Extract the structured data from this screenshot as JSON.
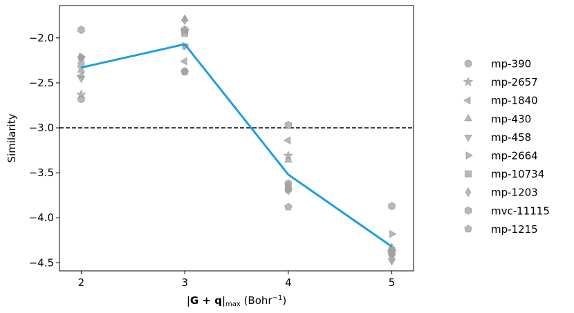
{
  "chart_data": {
    "type": "scatter",
    "xlabel": {
      "prefix": "|",
      "bold": "G + q",
      "suffix": "|",
      "sub": "max",
      "unit": " (Bohr",
      "sup": "−1",
      "close": ")"
    },
    "ylabel": "Similarity",
    "xlim": [
      1.79,
      5.21
    ],
    "ylim": [
      -4.59,
      -1.64
    ],
    "xticks": [
      2,
      3,
      4,
      5
    ],
    "xtick_labels": [
      "2",
      "3",
      "4",
      "5"
    ],
    "yticks": [
      -2.0,
      -2.5,
      -3.0,
      -3.5,
      -4.0,
      -4.5
    ],
    "ytick_labels": [
      "−2.0",
      "−2.5",
      "−3.0",
      "−3.5",
      "−4.0",
      "−4.5"
    ],
    "threshold": {
      "y": -3.0,
      "style": "dashed",
      "color": "#000000"
    },
    "marker_color": "#a0a0a0",
    "line_color": "#1a9fe0",
    "grid": false,
    "legend_position": "right-outside",
    "series": [
      {
        "name": "mp-390",
        "marker": "circle",
        "x": [
          2,
          3,
          4,
          5
        ],
        "y": [
          -2.68,
          -2.37,
          -3.62,
          -4.4
        ]
      },
      {
        "name": "mp-2657",
        "marker": "star",
        "x": [
          2,
          3,
          4,
          5
        ],
        "y": [
          -2.63,
          -1.92,
          -3.31,
          -4.38
        ]
      },
      {
        "name": "mp-1840",
        "marker": "triangle-left",
        "x": [
          2,
          3,
          4,
          5
        ],
        "y": [
          -2.42,
          -2.26,
          -3.14,
          -4.37
        ]
      },
      {
        "name": "mp-430",
        "marker": "triangle-up",
        "x": [
          2,
          3,
          4,
          5
        ],
        "y": [
          -2.36,
          -1.79,
          -3.36,
          -4.33
        ]
      },
      {
        "name": "mp-458",
        "marker": "triangle-down",
        "x": [
          2,
          3,
          4,
          5
        ],
        "y": [
          -2.45,
          -2.09,
          -3.7,
          -4.48
        ]
      },
      {
        "name": "mp-2664",
        "marker": "triangle-right",
        "x": [
          2,
          3,
          4,
          5
        ],
        "y": [
          -2.21,
          -2.09,
          -3.68,
          -4.18
        ]
      },
      {
        "name": "mp-10734",
        "marker": "square",
        "x": [
          2,
          3,
          4,
          5
        ],
        "y": [
          -2.3,
          -1.95,
          -3.68,
          -4.36
        ]
      },
      {
        "name": "mp-1203",
        "marker": "diamond",
        "x": [
          2,
          3,
          4,
          5
        ],
        "y": [
          -2.22,
          -1.8,
          -3.64,
          -4.45
        ]
      },
      {
        "name": "mvc-11115",
        "marker": "hexagon",
        "x": [
          2,
          3,
          4,
          5
        ],
        "y": [
          -1.91,
          -1.91,
          -2.97,
          -3.87
        ]
      },
      {
        "name": "mp-1215",
        "marker": "pentagon",
        "x": [
          2,
          3,
          4,
          5
        ],
        "y": [
          -2.22,
          -2.38,
          -3.88,
          -4.4
        ]
      }
    ],
    "mean_line": {
      "x": [
        2,
        3,
        4,
        5
      ],
      "y": [
        -2.33,
        -2.07,
        -3.52,
        -4.32
      ]
    }
  }
}
